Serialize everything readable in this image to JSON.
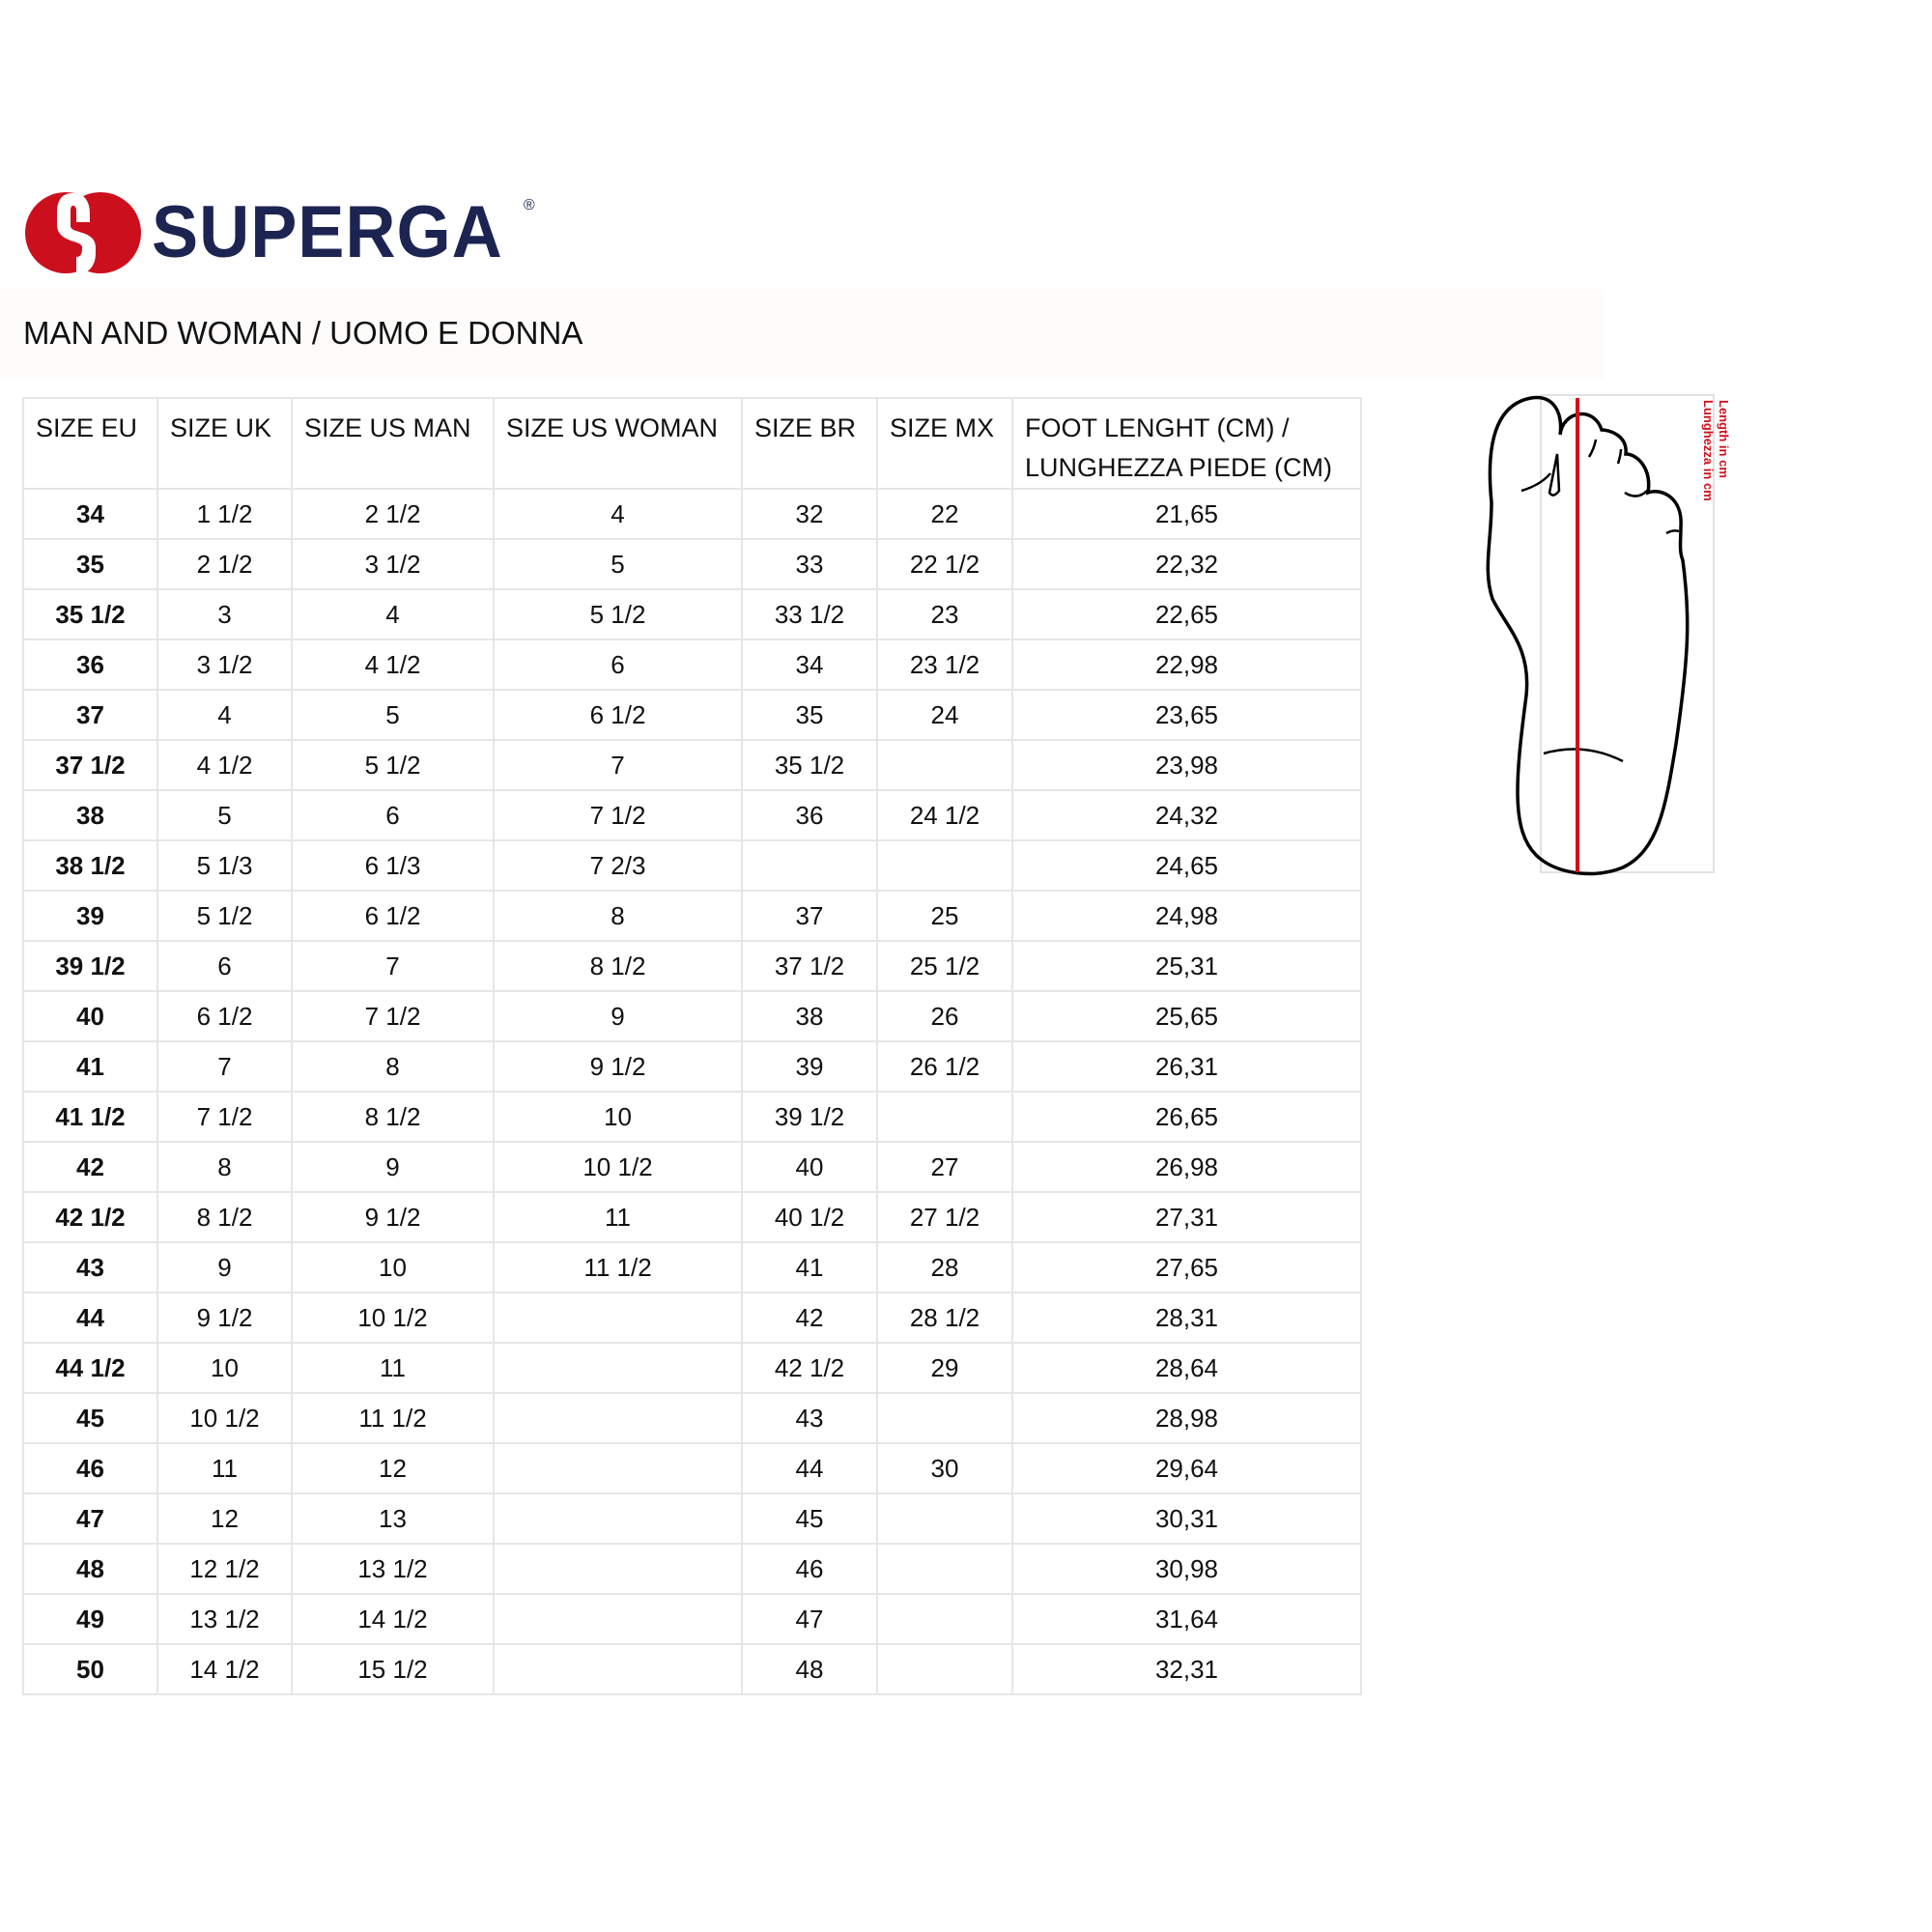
{
  "brand": {
    "name": "SUPERGA",
    "registered": "®",
    "colors": {
      "red": "#cc0f1c",
      "navy": "#1c2452"
    },
    "icon": "superga-s-logo"
  },
  "title": "MAN AND WOMAN / UOMO E DONNA",
  "table": {
    "headers": [
      "SIZE EU",
      "SIZE UK",
      "SIZE US MAN",
      "SIZE US WOMAN",
      "SIZE BR",
      "SIZE MX",
      "FOOT LENGHT (CM) / LUNGHEZZA PIEDE (CM)"
    ],
    "rows": [
      [
        "34",
        "1 1/2",
        "2 1/2",
        "4",
        "32",
        "22",
        "21,65"
      ],
      [
        "35",
        "2 1/2",
        "3 1/2",
        "5",
        "33",
        "22 1/2",
        "22,32"
      ],
      [
        "35 1/2",
        "3",
        "4",
        "5 1/2",
        "33 1/2",
        "23",
        "22,65"
      ],
      [
        "36",
        "3 1/2",
        "4 1/2",
        "6",
        "34",
        "23 1/2",
        "22,98"
      ],
      [
        "37",
        "4",
        "5",
        "6 1/2",
        "35",
        "24",
        "23,65"
      ],
      [
        "37 1/2",
        "4 1/2",
        "5 1/2",
        "7",
        "35 1/2",
        "",
        "23,98"
      ],
      [
        "38",
        "5",
        "6",
        "7 1/2",
        "36",
        "24 1/2",
        "24,32"
      ],
      [
        "38 1/2",
        "5 1/3",
        "6 1/3",
        "7 2/3",
        "",
        "",
        "24,65"
      ],
      [
        "39",
        "5 1/2",
        "6 1/2",
        "8",
        "37",
        "25",
        "24,98"
      ],
      [
        "39 1/2",
        "6",
        "7",
        "8 1/2",
        "37 1/2",
        "25 1/2",
        "25,31"
      ],
      [
        "40",
        "6 1/2",
        "7 1/2",
        "9",
        "38",
        "26",
        "25,65"
      ],
      [
        "41",
        "7",
        "8",
        "9 1/2",
        "39",
        "26 1/2",
        "26,31"
      ],
      [
        "41 1/2",
        "7 1/2",
        "8 1/2",
        "10",
        "39 1/2",
        "",
        "26,65"
      ],
      [
        "42",
        "8",
        "9",
        "10 1/2",
        "40",
        "27",
        "26,98"
      ],
      [
        "42 1/2",
        "8 1/2",
        "9 1/2",
        "11",
        "40 1/2",
        "27 1/2",
        "27,31"
      ],
      [
        "43",
        "9",
        "10",
        "11 1/2",
        "41",
        "28",
        "27,65"
      ],
      [
        "44",
        "9 1/2",
        "10 1/2",
        "",
        "42",
        "28 1/2",
        "28,31"
      ],
      [
        "44 1/2",
        "10",
        "11",
        "",
        "42 1/2",
        "29",
        "28,64"
      ],
      [
        "45",
        "10 1/2",
        "11 1/2",
        "",
        "43",
        "",
        "28,98"
      ],
      [
        "46",
        "11",
        "12",
        "",
        "44",
        "30",
        "29,64"
      ],
      [
        "47",
        "12",
        "13",
        "",
        "45",
        "",
        "30,31"
      ],
      [
        "48",
        "12 1/2",
        "13 1/2",
        "",
        "46",
        "",
        "30,98"
      ],
      [
        "49",
        "13 1/2",
        "14 1/2",
        "",
        "47",
        "",
        "31,64"
      ],
      [
        "50",
        "14 1/2",
        "15 1/2",
        "",
        "48",
        "",
        "32,31"
      ]
    ]
  },
  "foot_diagram": {
    "label_en": "Length in cm",
    "label_it": "Lunghezza in cm",
    "line_color": "#d0101c",
    "icon": "foot-outline"
  }
}
